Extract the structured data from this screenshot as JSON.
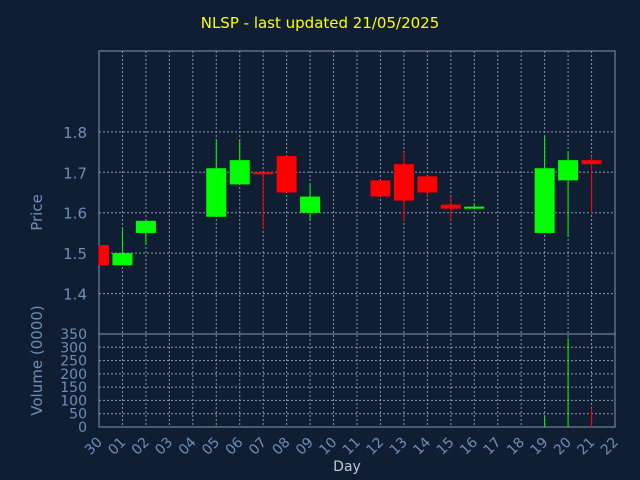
{
  "chart_data": {
    "type": "candlestick",
    "title": "NLSP - last updated 21/05/2025",
    "ylabel": "Price",
    "volume_ylabel": "Volume (0000)",
    "xlabel": "Day",
    "categories": [
      "30",
      "01",
      "02",
      "03",
      "04",
      "05",
      "06",
      "07",
      "08",
      "09",
      "10",
      "11",
      "12",
      "13",
      "14",
      "15",
      "16",
      "17",
      "18",
      "19",
      "20",
      "21",
      "22"
    ],
    "ylim": [
      1.3,
      2.0
    ],
    "yticks": [
      "1.4",
      "1.5",
      "1.6",
      "1.7",
      "1.8"
    ],
    "volume_ylim": [
      0,
      350
    ],
    "volume_yticks": [
      "0",
      "50",
      "100",
      "150",
      "200",
      "250",
      "300",
      "350"
    ],
    "colors": {
      "up": "#00ff00",
      "down": "#ff0000",
      "background": "#0f1e32",
      "grid": "#8a96a8",
      "axis_text": "#6f8eb6",
      "title": "#ffff00"
    },
    "candles": [
      {
        "day": "30",
        "open": 1.52,
        "high": 1.52,
        "low": 1.47,
        "close": 1.47,
        "volume": 0
      },
      {
        "day": "01",
        "open": 1.47,
        "high": 1.56,
        "low": 1.47,
        "close": 1.5,
        "volume": 0
      },
      {
        "day": "02",
        "open": 1.55,
        "high": 1.58,
        "low": 1.52,
        "close": 1.58,
        "volume": 0
      },
      {
        "day": "05",
        "open": 1.59,
        "high": 1.78,
        "low": 1.59,
        "close": 1.71,
        "volume": 3
      },
      {
        "day": "06",
        "open": 1.67,
        "high": 1.78,
        "low": 1.67,
        "close": 1.73,
        "volume": 0
      },
      {
        "day": "07",
        "open": 1.7,
        "high": 1.7,
        "low": 1.56,
        "close": 1.695,
        "volume": 0
      },
      {
        "day": "08",
        "open": 1.74,
        "high": 1.74,
        "low": 1.65,
        "close": 1.65,
        "volume": 0
      },
      {
        "day": "09",
        "open": 1.6,
        "high": 1.67,
        "low": 1.58,
        "close": 1.64,
        "volume": 0
      },
      {
        "day": "12",
        "open": 1.68,
        "high": 1.68,
        "low": 1.64,
        "close": 1.64,
        "volume": 0
      },
      {
        "day": "13",
        "open": 1.72,
        "high": 1.75,
        "low": 1.58,
        "close": 1.63,
        "volume": 0
      },
      {
        "day": "14",
        "open": 1.69,
        "high": 1.69,
        "low": 1.64,
        "close": 1.65,
        "volume": 0
      },
      {
        "day": "15",
        "open": 1.62,
        "high": 1.64,
        "low": 1.58,
        "close": 1.61,
        "volume": 0
      },
      {
        "day": "16",
        "open": 1.61,
        "high": 1.62,
        "low": 1.61,
        "close": 1.615,
        "volume": 0
      },
      {
        "day": "19",
        "open": 1.55,
        "high": 1.79,
        "low": 1.55,
        "close": 1.71,
        "volume": 40
      },
      {
        "day": "20",
        "open": 1.68,
        "high": 1.75,
        "low": 1.54,
        "close": 1.73,
        "volume": 335
      },
      {
        "day": "21",
        "open": 1.73,
        "high": 1.74,
        "low": 1.6,
        "close": 1.72,
        "volume": 70
      }
    ]
  }
}
